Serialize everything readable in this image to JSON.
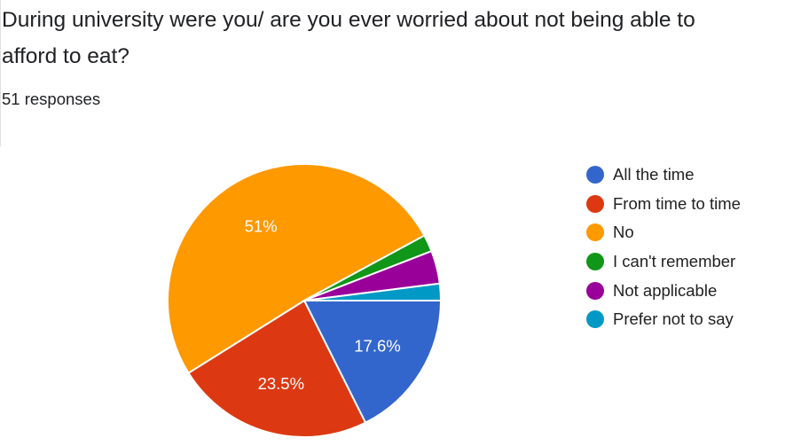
{
  "question": {
    "title_line1": "During university were you/ are you ever worried about not being able to",
    "title_line2": "afford to eat?",
    "responses_text": "51 responses"
  },
  "chart_data": {
    "type": "pie",
    "title": "During university were you/ are you ever worried about not being able to afford to eat?",
    "legend_position": "right",
    "slices": [
      {
        "name": "All the time",
        "value": 17.6,
        "label": "17.6%",
        "color": "#3366cc"
      },
      {
        "name": "From time to time",
        "value": 23.5,
        "label": "23.5%",
        "color": "#dc3912"
      },
      {
        "name": "No",
        "value": 51,
        "label": "51%",
        "color": "#ff9900"
      },
      {
        "name": "I can't remember",
        "value": 2,
        "label": "",
        "color": "#109618"
      },
      {
        "name": "Not applicable",
        "value": 3.9,
        "label": "",
        "color": "#990099"
      },
      {
        "name": "Prefer not to say",
        "value": 2,
        "label": "",
        "color": "#0099c6"
      }
    ]
  }
}
